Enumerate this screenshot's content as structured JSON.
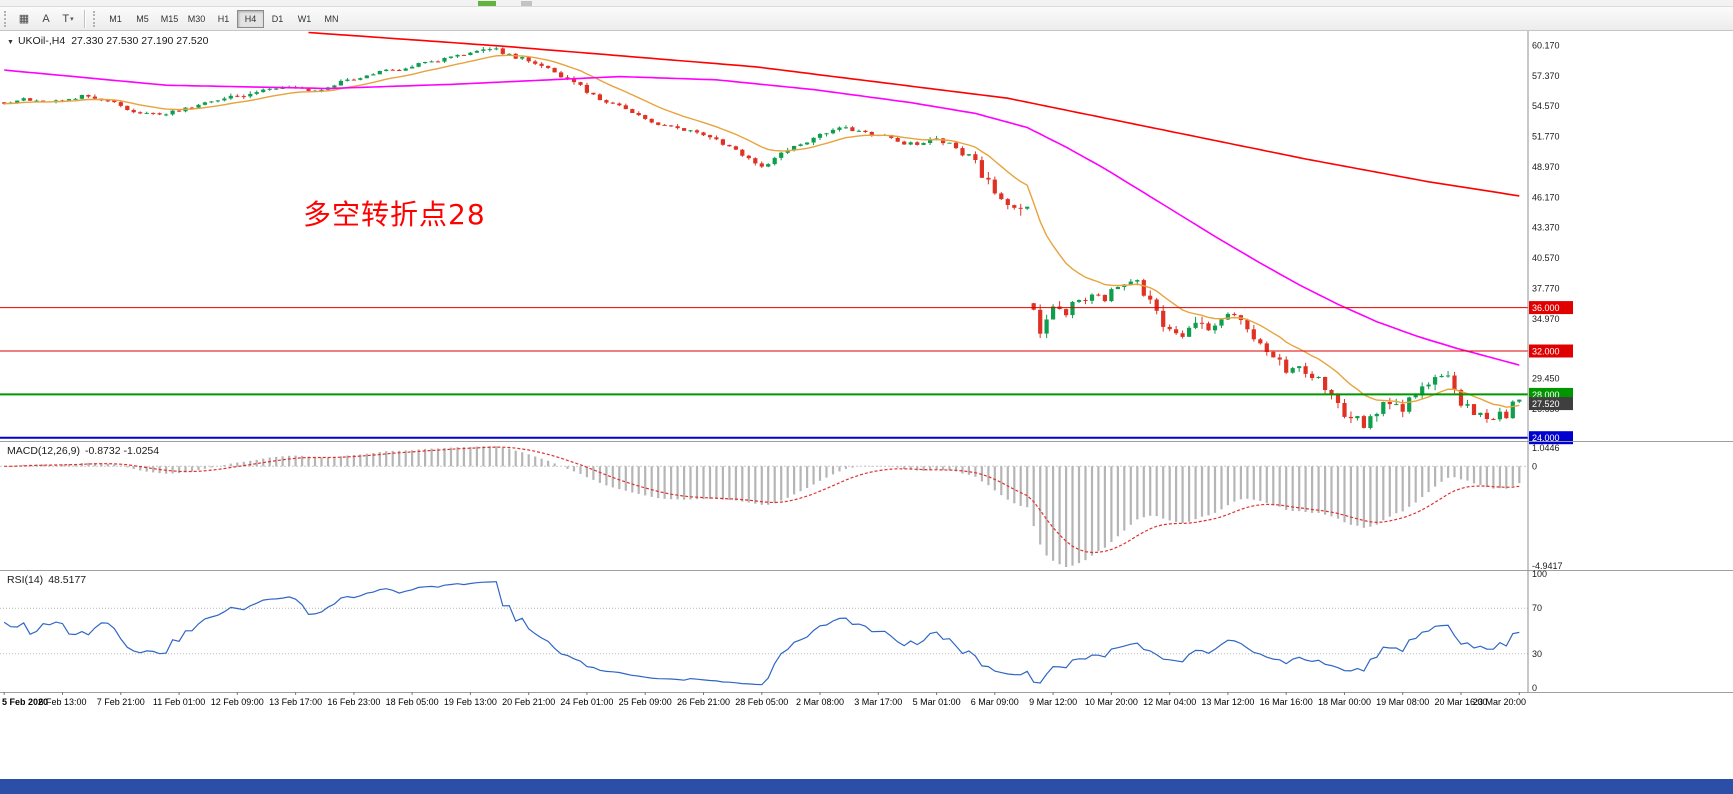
{
  "toolbar": {
    "tools": [
      {
        "name": "grid",
        "glyph": "▦"
      },
      {
        "name": "cursor",
        "glyph": "A"
      },
      {
        "name": "text",
        "glyph": "T"
      }
    ],
    "dropdown_glyph": "▾",
    "timeframes": [
      {
        "label": "M1"
      },
      {
        "label": "M5"
      },
      {
        "label": "M15"
      },
      {
        "label": "M30"
      },
      {
        "label": "H1"
      },
      {
        "label": "H4",
        "active": true
      },
      {
        "label": "D1"
      },
      {
        "label": "W1"
      },
      {
        "label": "MN"
      }
    ]
  },
  "chart": {
    "collapse_glyph": "▼",
    "title": "UKOil-,H4",
    "ohlc_text": "27.330 27.530 27.190 27.520",
    "annotation": "多空转折点28",
    "annotation_color": "#ff0000",
    "price_axis_labels": [
      "60.170",
      "57.370",
      "54.570",
      "51.770",
      "48.970",
      "46.170",
      "43.370",
      "40.570",
      "37.770",
      "34.970",
      "29.450",
      "26.650"
    ],
    "hlines": [
      {
        "price": 36.0,
        "label": "36.000",
        "color": "#e00000",
        "width": 1
      },
      {
        "price": 32.0,
        "label": "32.000",
        "color": "#e00000",
        "width": 1
      },
      {
        "price": 28.0,
        "label": "28.000",
        "color": "#009600",
        "width": 2
      },
      {
        "price": 24.0,
        "label": "24.000",
        "color": "#0000d0",
        "width": 2
      }
    ],
    "bid_badge": {
      "price": 27.52,
      "label": "27.520",
      "color": "#3f3f3f"
    },
    "scale": {
      "p_max": 61.5,
      "p_min": 23.7
    }
  },
  "chart_data": {
    "type": "candlestick",
    "symbol": "UKOil-",
    "timeframe": "H4",
    "bars_total": 235,
    "last_bar": [
      27.33,
      27.53,
      27.19,
      27.52
    ],
    "gaps": [
      {
        "bar": 159,
        "open": 36.4
      }
    ],
    "close_anchors": [
      [
        0,
        54.8
      ],
      [
        3,
        55.3
      ],
      [
        6,
        55.0
      ],
      [
        9,
        55.1
      ],
      [
        12,
        55.6
      ],
      [
        15,
        55.1
      ],
      [
        18,
        54.6
      ],
      [
        21,
        53.9
      ],
      [
        24,
        53.8
      ],
      [
        27,
        54.1
      ],
      [
        30,
        54.7
      ],
      [
        33,
        55.1
      ],
      [
        36,
        55.5
      ],
      [
        40,
        56.1
      ],
      [
        45,
        56.3
      ],
      [
        48,
        56.0
      ],
      [
        52,
        56.9
      ],
      [
        56,
        57.4
      ],
      [
        60,
        57.9
      ],
      [
        63,
        58.2
      ],
      [
        66,
        58.7
      ],
      [
        70,
        59.3
      ],
      [
        74,
        59.8
      ],
      [
        76,
        59.9
      ],
      [
        78,
        59.4
      ],
      [
        81,
        58.7
      ],
      [
        84,
        58.1
      ],
      [
        87,
        57.1
      ],
      [
        90,
        55.8
      ],
      [
        93,
        54.9
      ],
      [
        96,
        54.3
      ],
      [
        99,
        53.4
      ],
      [
        102,
        52.8
      ],
      [
        105,
        52.3
      ],
      [
        108,
        51.9
      ],
      [
        111,
        51.0
      ],
      [
        114,
        50.0
      ],
      [
        117,
        49.0
      ],
      [
        119,
        49.8
      ],
      [
        122,
        50.9
      ],
      [
        126,
        52.0
      ],
      [
        129,
        52.6
      ],
      [
        132,
        52.3
      ],
      [
        135,
        51.9
      ],
      [
        138,
        51.3
      ],
      [
        141,
        51.0
      ],
      [
        144,
        51.6
      ],
      [
        147,
        50.7
      ],
      [
        150,
        49.6
      ],
      [
        152,
        47.8
      ],
      [
        154,
        46.0
      ],
      [
        156,
        45.2
      ],
      [
        158,
        45.3
      ],
      [
        159,
        35.8
      ],
      [
        160,
        33.6
      ],
      [
        161,
        34.9
      ],
      [
        162,
        36.1
      ],
      [
        164,
        35.3
      ],
      [
        166,
        36.7
      ],
      [
        168,
        37.2
      ],
      [
        170,
        36.6
      ],
      [
        172,
        37.9
      ],
      [
        174,
        38.4
      ],
      [
        176,
        37.1
      ],
      [
        178,
        35.7
      ],
      [
        180,
        34.0
      ],
      [
        182,
        33.3
      ],
      [
        184,
        34.6
      ],
      [
        186,
        33.9
      ],
      [
        188,
        34.9
      ],
      [
        190,
        35.3
      ],
      [
        192,
        34.0
      ],
      [
        194,
        32.7
      ],
      [
        196,
        31.4
      ],
      [
        198,
        30.0
      ],
      [
        200,
        30.6
      ],
      [
        202,
        29.5
      ],
      [
        204,
        28.4
      ],
      [
        206,
        27.2
      ],
      [
        208,
        25.8
      ],
      [
        210,
        24.9
      ],
      [
        212,
        26.2
      ],
      [
        214,
        27.1
      ],
      [
        216,
        26.4
      ],
      [
        218,
        27.9
      ],
      [
        220,
        28.9
      ],
      [
        222,
        29.7
      ],
      [
        224,
        28.4
      ],
      [
        226,
        27.1
      ],
      [
        228,
        26.3
      ],
      [
        230,
        25.7
      ],
      [
        231,
        26.4
      ],
      [
        232,
        25.8
      ],
      [
        233,
        27.33
      ],
      [
        234,
        27.52
      ]
    ],
    "ma_fast": {
      "period": 13,
      "color": "#e8a33d"
    },
    "ma_mid": {
      "color": "#ff00ff",
      "anchors": [
        [
          0,
          57.9
        ],
        [
          25,
          56.5
        ],
        [
          50,
          56.2
        ],
        [
          70,
          56.6
        ],
        [
          95,
          57.3
        ],
        [
          110,
          57.0
        ],
        [
          125,
          56.1
        ],
        [
          140,
          54.9
        ],
        [
          150,
          53.9
        ],
        [
          158,
          52.6
        ],
        [
          164,
          50.8
        ],
        [
          170,
          48.8
        ],
        [
          176,
          46.6
        ],
        [
          182,
          44.4
        ],
        [
          188,
          42.2
        ],
        [
          194,
          40.1
        ],
        [
          200,
          38.1
        ],
        [
          206,
          36.3
        ],
        [
          212,
          34.7
        ],
        [
          218,
          33.4
        ],
        [
          224,
          32.3
        ],
        [
          229,
          31.5
        ],
        [
          234,
          30.7
        ]
      ]
    },
    "ma_slow": {
      "color": "#ff0000",
      "anchors": [
        [
          0,
          63.0
        ],
        [
          39,
          61.7
        ],
        [
          77,
          60.1
        ],
        [
          116,
          58.2
        ],
        [
          155,
          55.3
        ],
        [
          178,
          52.5
        ],
        [
          201,
          49.7
        ],
        [
          220,
          47.6
        ],
        [
          234,
          46.3
        ]
      ]
    },
    "colors": {
      "up": "#0f9d4e",
      "down": "#e03224"
    },
    "macd": {
      "label": "MACD(12,26,9)",
      "values_text": "-0.8732 -1.0254",
      "axis": [
        "1.0446",
        "0",
        "-4.9417"
      ],
      "fast": 12,
      "slow": 26,
      "signal": 9,
      "hist_color": "#b5b5b5",
      "signal_color": "#e03131"
    },
    "rsi": {
      "label": "RSI(14)",
      "value_text": "48.5177",
      "period": 14,
      "levels": [
        70,
        30
      ],
      "axis": [
        "100",
        "70",
        "30",
        "0"
      ],
      "color": "#2f66c4",
      "level_color": "#b8b8b8"
    },
    "time_labels": [
      "5 Feb 2020",
      "6 Feb 13:00",
      "7 Feb 21:00",
      "11 Feb 01:00",
      "12 Feb 09:00",
      "13 Feb 17:00",
      "16 Feb 23:00",
      "18 Feb 05:00",
      "19 Feb 13:00",
      "20 Feb 21:00",
      "24 Feb 01:00",
      "25 Feb 09:00",
      "26 Feb 21:00",
      "28 Feb 05:00",
      "2 Mar 08:00",
      "3 Mar 17:00",
      "5 Mar 01:00",
      "6 Mar 09:00",
      "9 Mar 12:00",
      "10 Mar 20:00",
      "12 Mar 04:00",
      "13 Mar 12:00",
      "16 Mar 16:00",
      "18 Mar 00:00",
      "19 Mar 08:00",
      "20 Mar 16:00",
      "23 Mar 20:00"
    ],
    "label_step_bars": 9
  },
  "taskbar": {
    "color": "#2b4ea6"
  }
}
